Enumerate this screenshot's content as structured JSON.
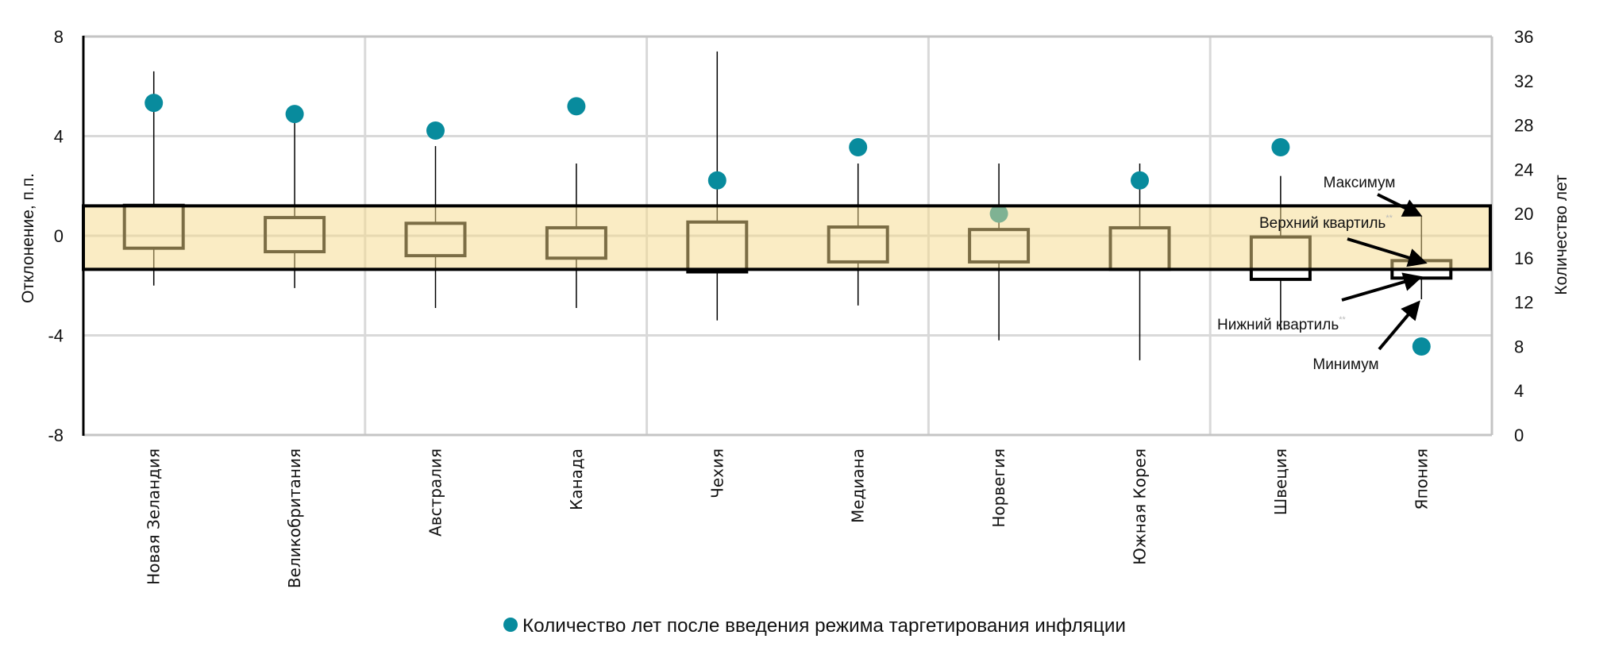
{
  "colors": {
    "dot": "#088b9d",
    "band_fill": "#f6d98a",
    "box_stroke": "#000000",
    "grid": "#d9d9d9",
    "frame": "#c4c4c4"
  },
  "chart_data": {
    "type": "boxplot",
    "title": "",
    "categories": [
      "Новая Зеландия",
      "Великобритания",
      "Австралия",
      "Канада",
      "Чехия",
      "Медиана",
      "Норвегия",
      "Южная Корея",
      "Швеция",
      "Япония"
    ],
    "ylabel_left": "Отклонение, п.п.",
    "ylabel_right": "Количество лет",
    "ylim_left": [
      -8,
      8
    ],
    "yticks_left": [
      "8",
      "4",
      "0",
      "-4",
      "-8"
    ],
    "ylim_right": [
      0,
      36
    ],
    "yticks_right": [
      "36",
      "32",
      "28",
      "24",
      "20",
      "16",
      "12",
      "8",
      "4",
      "0"
    ],
    "band": {
      "upper": 1.2,
      "lower": -1.35
    },
    "boxes": [
      {
        "max": 6.6,
        "q3": 1.22,
        "q1": -0.5,
        "min": -2.0
      },
      {
        "max": 4.6,
        "q3": 0.73,
        "q1": -0.64,
        "min": -2.1
      },
      {
        "max": 3.6,
        "q3": 0.5,
        "q1": -0.8,
        "min": -2.9
      },
      {
        "max": 2.9,
        "q3": 0.32,
        "q1": -0.9,
        "min": -2.9
      },
      {
        "max": 7.4,
        "q3": 0.55,
        "q1": -1.45,
        "min": -3.4
      },
      {
        "max": 2.9,
        "q3": 0.35,
        "q1": -1.05,
        "min": -2.8
      },
      {
        "max": 2.9,
        "q3": 0.25,
        "q1": -1.05,
        "min": -4.2
      },
      {
        "max": 2.9,
        "q3": 0.32,
        "q1": -1.35,
        "min": -5.0
      },
      {
        "max": 2.4,
        "q3": -0.05,
        "q1": -1.75,
        "min": -3.8
      },
      {
        "max": 0.8,
        "q3": -1.0,
        "q1": -1.7,
        "min": -2.55
      }
    ],
    "series": [
      {
        "name": "Количество лет после введения режима таргетирования инфляции",
        "axis": "right",
        "values": [
          30,
          29,
          27.5,
          29.7,
          23,
          26,
          20,
          23,
          26,
          8
        ]
      }
    ],
    "legend": {
      "position": "bottom",
      "entries": [
        "Количество лет после введения режима таргетирования инфляции"
      ]
    },
    "annotations": {
      "max": "Максимум",
      "q3": "Верхний квартиль",
      "q1": "Нижний квартиль",
      "min": "Минимум",
      "footnote_mark": "**"
    },
    "grid": true
  }
}
